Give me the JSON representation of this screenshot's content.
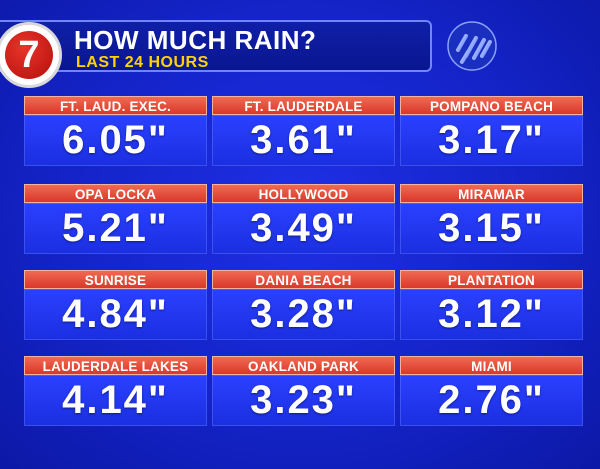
{
  "header": {
    "logo_text": "7",
    "title": "HOW MUCH RAIN?",
    "subtitle": "LAST 24 HOURS",
    "icon": "rain-icon"
  },
  "colors": {
    "background": "#1424c8",
    "label_bar": "#e04a36",
    "subtitle": "#ffd400",
    "logo_red": "#c31a14"
  },
  "locations": [
    {
      "name": "FT. LAUD. EXEC.",
      "value": "6.05\""
    },
    {
      "name": "FT. LAUDERDALE",
      "value": "3.61\""
    },
    {
      "name": "POMPANO BEACH",
      "value": "3.17\""
    },
    {
      "name": "OPA LOCKA",
      "value": "5.21\""
    },
    {
      "name": "HOLLYWOOD",
      "value": "3.49\""
    },
    {
      "name": "MIRAMAR",
      "value": "3.15\""
    },
    {
      "name": "SUNRISE",
      "value": "4.84\""
    },
    {
      "name": "DANIA BEACH",
      "value": "3.28\""
    },
    {
      "name": "PLANTATION",
      "value": "3.12\""
    },
    {
      "name": "LAUDERDALE LAKES",
      "value": "4.14\""
    },
    {
      "name": "OAKLAND PARK",
      "value": "3.23\""
    },
    {
      "name": "MIAMI",
      "value": "2.76\""
    }
  ]
}
